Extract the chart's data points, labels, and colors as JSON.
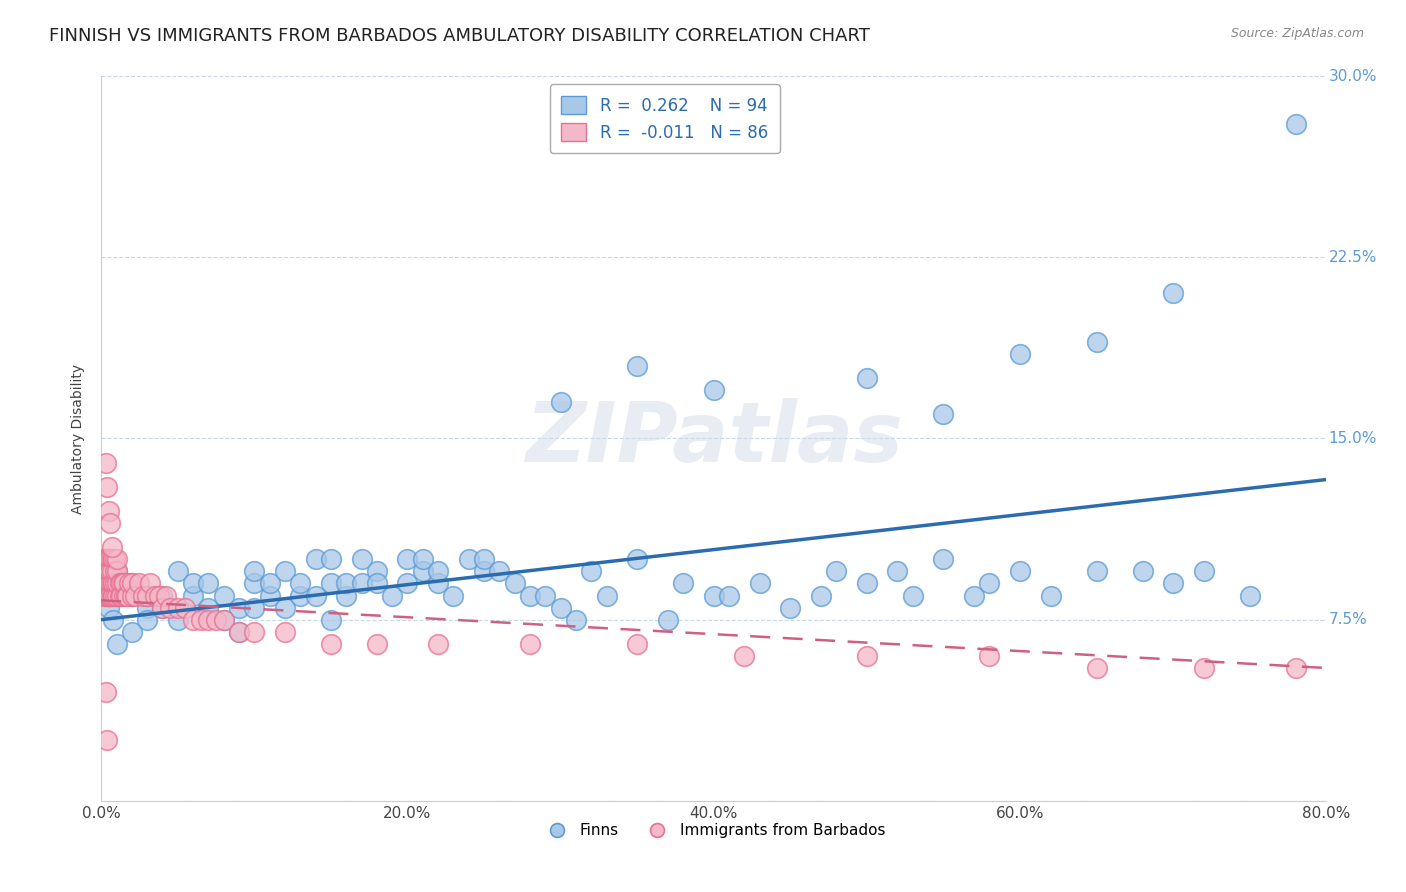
{
  "title": "FINNISH VS IMMIGRANTS FROM BARBADOS AMBULATORY DISABILITY CORRELATION CHART",
  "source": "Source: ZipAtlas.com",
  "ylabel": "Ambulatory Disability",
  "xlim": [
    0.0,
    0.8
  ],
  "ylim": [
    0.0,
    0.3
  ],
  "legend_labels": [
    "Finns",
    "Immigrants from Barbados"
  ],
  "r_finns": "0.262",
  "n_finns": "94",
  "r_barbados": "-0.011",
  "n_barbados": "86",
  "blue_color": "#a8c8e8",
  "pink_color": "#f4b8c8",
  "blue_edge_color": "#5b9bd5",
  "pink_edge_color": "#e87090",
  "blue_line_color": "#2b6cb0",
  "pink_line_color": "#d06080",
  "tick_color": "#5b9bd5",
  "grid_color": "#c8d8e8",
  "watermark": "ZIPatlas",
  "title_fontsize": 13,
  "axis_label_fontsize": 10,
  "tick_fontsize": 11,
  "finns_x": [
    0.005,
    0.008,
    0.01,
    0.01,
    0.01,
    0.01,
    0.02,
    0.02,
    0.02,
    0.03,
    0.03,
    0.03,
    0.04,
    0.04,
    0.05,
    0.05,
    0.06,
    0.06,
    0.07,
    0.07,
    0.08,
    0.08,
    0.09,
    0.09,
    0.1,
    0.1,
    0.1,
    0.11,
    0.11,
    0.12,
    0.12,
    0.13,
    0.13,
    0.14,
    0.14,
    0.15,
    0.15,
    0.15,
    0.16,
    0.16,
    0.17,
    0.17,
    0.18,
    0.18,
    0.19,
    0.2,
    0.2,
    0.21,
    0.21,
    0.22,
    0.22,
    0.23,
    0.24,
    0.25,
    0.25,
    0.26,
    0.27,
    0.28,
    0.29,
    0.3,
    0.31,
    0.32,
    0.33,
    0.35,
    0.37,
    0.38,
    0.4,
    0.41,
    0.43,
    0.45,
    0.47,
    0.48,
    0.5,
    0.52,
    0.53,
    0.55,
    0.57,
    0.58,
    0.6,
    0.62,
    0.65,
    0.68,
    0.7,
    0.72,
    0.75,
    0.5,
    0.3,
    0.35,
    0.4,
    0.55,
    0.6,
    0.65,
    0.7,
    0.78
  ],
  "finns_y": [
    0.08,
    0.075,
    0.085,
    0.09,
    0.095,
    0.065,
    0.09,
    0.085,
    0.07,
    0.08,
    0.085,
    0.075,
    0.08,
    0.085,
    0.095,
    0.075,
    0.085,
    0.09,
    0.08,
    0.09,
    0.085,
    0.075,
    0.08,
    0.07,
    0.09,
    0.095,
    0.08,
    0.085,
    0.09,
    0.08,
    0.095,
    0.085,
    0.09,
    0.1,
    0.085,
    0.075,
    0.09,
    0.1,
    0.085,
    0.09,
    0.09,
    0.1,
    0.095,
    0.09,
    0.085,
    0.1,
    0.09,
    0.095,
    0.1,
    0.09,
    0.095,
    0.085,
    0.1,
    0.095,
    0.1,
    0.095,
    0.09,
    0.085,
    0.085,
    0.08,
    0.075,
    0.095,
    0.085,
    0.1,
    0.075,
    0.09,
    0.085,
    0.085,
    0.09,
    0.08,
    0.085,
    0.095,
    0.09,
    0.095,
    0.085,
    0.1,
    0.085,
    0.09,
    0.095,
    0.085,
    0.095,
    0.095,
    0.09,
    0.095,
    0.085,
    0.175,
    0.165,
    0.18,
    0.17,
    0.16,
    0.185,
    0.19,
    0.21,
    0.28
  ],
  "barbados_x": [
    0.002,
    0.002,
    0.002,
    0.003,
    0.003,
    0.003,
    0.003,
    0.004,
    0.004,
    0.004,
    0.004,
    0.005,
    0.005,
    0.005,
    0.005,
    0.005,
    0.005,
    0.006,
    0.006,
    0.006,
    0.006,
    0.007,
    0.007,
    0.007,
    0.007,
    0.008,
    0.008,
    0.008,
    0.009,
    0.009,
    0.009,
    0.009,
    0.01,
    0.01,
    0.01,
    0.01,
    0.012,
    0.012,
    0.013,
    0.013,
    0.014,
    0.015,
    0.015,
    0.016,
    0.017,
    0.018,
    0.02,
    0.02,
    0.022,
    0.025,
    0.027,
    0.03,
    0.032,
    0.035,
    0.038,
    0.04,
    0.042,
    0.045,
    0.05,
    0.055,
    0.06,
    0.065,
    0.07,
    0.075,
    0.08,
    0.09,
    0.1,
    0.12,
    0.15,
    0.18,
    0.22,
    0.28,
    0.35,
    0.42,
    0.5,
    0.58,
    0.65,
    0.72,
    0.78,
    0.003,
    0.004,
    0.005,
    0.006,
    0.007,
    0.003,
    0.004
  ],
  "barbados_y": [
    0.09,
    0.1,
    0.085,
    0.09,
    0.095,
    0.085,
    0.1,
    0.09,
    0.095,
    0.085,
    0.1,
    0.09,
    0.095,
    0.085,
    0.1,
    0.095,
    0.085,
    0.09,
    0.1,
    0.085,
    0.095,
    0.085,
    0.09,
    0.1,
    0.095,
    0.085,
    0.09,
    0.1,
    0.085,
    0.09,
    0.095,
    0.1,
    0.085,
    0.09,
    0.095,
    0.1,
    0.09,
    0.085,
    0.09,
    0.085,
    0.09,
    0.085,
    0.09,
    0.085,
    0.085,
    0.09,
    0.085,
    0.09,
    0.085,
    0.09,
    0.085,
    0.085,
    0.09,
    0.085,
    0.085,
    0.08,
    0.085,
    0.08,
    0.08,
    0.08,
    0.075,
    0.075,
    0.075,
    0.075,
    0.075,
    0.07,
    0.07,
    0.07,
    0.065,
    0.065,
    0.065,
    0.065,
    0.065,
    0.06,
    0.06,
    0.06,
    0.055,
    0.055,
    0.055,
    0.14,
    0.13,
    0.12,
    0.115,
    0.105,
    0.045,
    0.025
  ],
  "finns_trend_x0": 0.0,
  "finns_trend_x1": 0.8,
  "finns_trend_y0": 0.075,
  "finns_trend_y1": 0.133,
  "barbados_trend_x0": 0.0,
  "barbados_trend_x1": 0.8,
  "barbados_trend_y0": 0.083,
  "barbados_trend_y1": 0.055
}
